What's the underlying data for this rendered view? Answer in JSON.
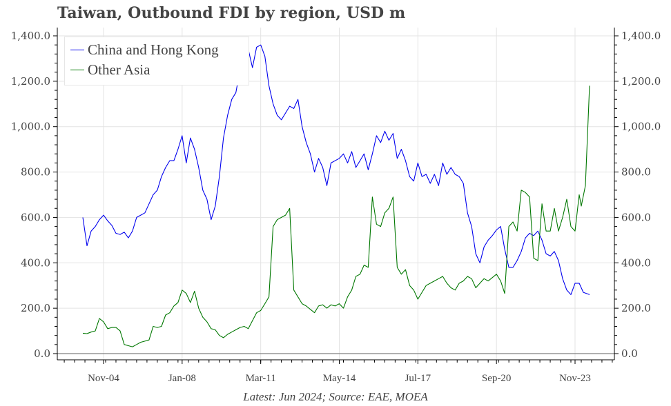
{
  "title": "Taiwan, Outbound FDI by region, USD m",
  "source_note": "Latest: Jun 2024; Source: EAE, MOEA",
  "legend": [
    {
      "label": "China and Hong Kong",
      "color": "#0000ee"
    },
    {
      "label": "Other Asia",
      "color": "#007700"
    }
  ],
  "axes": {
    "y_ticks": [
      "0.0",
      "200.0",
      "400.0",
      "600.0",
      "800.0",
      "1,000.0",
      "1,200.0",
      "1,400.0"
    ],
    "x_ticks": [
      "Nov-04",
      "Jan-08",
      "Mar-11",
      "May-14",
      "Jul-17",
      "Sep-20",
      "Nov-23"
    ]
  },
  "chart_data": {
    "type": "line",
    "title": "Taiwan, Outbound FDI by region, USD m",
    "xlabel": "",
    "ylabel": "USD m",
    "ylim": [
      0,
      1400
    ],
    "y_axes": "left and right (mirrored)",
    "grid": true,
    "legend_position": "upper left",
    "x_start": "Jan-04",
    "x_end": "Jun-24",
    "frequency": "monthly (values sampled ~every 2 months)",
    "x_ticks": [
      "Nov-04",
      "Jan-08",
      "Mar-11",
      "May-14",
      "Jul-17",
      "Sep-20",
      "Nov-23"
    ],
    "annotation": "Latest: Jun 2024; Source: EAE, MOEA",
    "series": [
      {
        "name": "China and Hong Kong",
        "color": "#0000ee",
        "points": [
          [
            "Jan-04",
            600
          ],
          [
            "Mar-04",
            475
          ],
          [
            "May-04",
            540
          ],
          [
            "Jul-04",
            560
          ],
          [
            "Sep-04",
            590
          ],
          [
            "Nov-04",
            610
          ],
          [
            "Jan-05",
            585
          ],
          [
            "Mar-05",
            565
          ],
          [
            "May-05",
            530
          ],
          [
            "Jul-05",
            525
          ],
          [
            "Sep-05",
            535
          ],
          [
            "Nov-05",
            510
          ],
          [
            "Jan-06",
            540
          ],
          [
            "Mar-06",
            600
          ],
          [
            "May-06",
            610
          ],
          [
            "Jul-06",
            620
          ],
          [
            "Sep-06",
            660
          ],
          [
            "Nov-06",
            700
          ],
          [
            "Jan-07",
            720
          ],
          [
            "Mar-07",
            780
          ],
          [
            "May-07",
            820
          ],
          [
            "Jul-07",
            850
          ],
          [
            "Sep-07",
            850
          ],
          [
            "Nov-07",
            900
          ],
          [
            "Jan-08",
            960
          ],
          [
            "Mar-08",
            840
          ],
          [
            "May-08",
            950
          ],
          [
            "Jul-08",
            900
          ],
          [
            "Sep-08",
            820
          ],
          [
            "Nov-08",
            720
          ],
          [
            "Jan-09",
            680
          ],
          [
            "Mar-09",
            590
          ],
          [
            "May-09",
            650
          ],
          [
            "Jul-09",
            780
          ],
          [
            "Sep-09",
            950
          ],
          [
            "Nov-09",
            1050
          ],
          [
            "Jan-10",
            1120
          ],
          [
            "Mar-10",
            1150
          ],
          [
            "May-10",
            1250
          ],
          [
            "Jul-10",
            1280
          ],
          [
            "Sep-10",
            1340
          ],
          [
            "Nov-10",
            1260
          ],
          [
            "Jan-11",
            1350
          ],
          [
            "Mar-11",
            1360
          ],
          [
            "May-11",
            1310
          ],
          [
            "Jul-11",
            1180
          ],
          [
            "Sep-11",
            1100
          ],
          [
            "Nov-11",
            1050
          ],
          [
            "Jan-12",
            1030
          ],
          [
            "Mar-12",
            1060
          ],
          [
            "May-12",
            1090
          ],
          [
            "Jul-12",
            1080
          ],
          [
            "Sep-12",
            1120
          ],
          [
            "Nov-12",
            1000
          ],
          [
            "Jan-13",
            930
          ],
          [
            "Mar-13",
            880
          ],
          [
            "May-13",
            800
          ],
          [
            "Jul-13",
            860
          ],
          [
            "Sep-13",
            820
          ],
          [
            "Nov-13",
            740
          ],
          [
            "Jan-14",
            840
          ],
          [
            "May-14",
            860
          ],
          [
            "Jul-14",
            880
          ],
          [
            "Sep-14",
            840
          ],
          [
            "Nov-14",
            890
          ],
          [
            "Jan-15",
            820
          ],
          [
            "Mar-15",
            850
          ],
          [
            "May-15",
            880
          ],
          [
            "Jul-15",
            810
          ],
          [
            "Sep-15",
            880
          ],
          [
            "Nov-15",
            960
          ],
          [
            "Jan-16",
            930
          ],
          [
            "Mar-16",
            980
          ],
          [
            "May-16",
            940
          ],
          [
            "Jul-16",
            970
          ],
          [
            "Sep-16",
            860
          ],
          [
            "Nov-16",
            900
          ],
          [
            "Jan-17",
            850
          ],
          [
            "Mar-17",
            780
          ],
          [
            "May-17",
            760
          ],
          [
            "Jul-17",
            840
          ],
          [
            "Sep-17",
            780
          ],
          [
            "Nov-17",
            790
          ],
          [
            "Jan-18",
            750
          ],
          [
            "Mar-18",
            790
          ],
          [
            "May-18",
            740
          ],
          [
            "Jul-18",
            840
          ],
          [
            "Sep-18",
            790
          ],
          [
            "Nov-18",
            820
          ],
          [
            "Jan-19",
            790
          ],
          [
            "Mar-19",
            780
          ],
          [
            "May-19",
            750
          ],
          [
            "Jul-19",
            620
          ],
          [
            "Sep-19",
            560
          ],
          [
            "Nov-19",
            440
          ],
          [
            "Jan-20",
            400
          ],
          [
            "Mar-20",
            470
          ],
          [
            "May-20",
            500
          ],
          [
            "Jul-20",
            520
          ],
          [
            "Sep-20",
            545
          ],
          [
            "Nov-20",
            560
          ],
          [
            "Jan-21",
            460
          ],
          [
            "Mar-21",
            380
          ],
          [
            "May-21",
            380
          ],
          [
            "Jul-21",
            410
          ],
          [
            "Sep-21",
            450
          ],
          [
            "Nov-21",
            510
          ],
          [
            "Jan-22",
            530
          ],
          [
            "Mar-22",
            520
          ],
          [
            "May-22",
            540
          ],
          [
            "Jul-22",
            500
          ],
          [
            "Sep-22",
            440
          ],
          [
            "Nov-22",
            430
          ],
          [
            "Jan-23",
            450
          ],
          [
            "Mar-23",
            410
          ],
          [
            "May-23",
            330
          ],
          [
            "Jul-23",
            280
          ],
          [
            "Sep-23",
            260
          ],
          [
            "Nov-23",
            310
          ],
          [
            "Jan-24",
            310
          ],
          [
            "Mar-24",
            270
          ],
          [
            "Jun-24",
            260
          ]
        ]
      },
      {
        "name": "Other Asia",
        "color": "#007700",
        "points": [
          [
            "Jan-04",
            90
          ],
          [
            "Mar-04",
            88
          ],
          [
            "May-04",
            95
          ],
          [
            "Jul-04",
            100
          ],
          [
            "Sep-04",
            155
          ],
          [
            "Nov-04",
            140
          ],
          [
            "Jan-05",
            110
          ],
          [
            "Mar-05",
            115
          ],
          [
            "May-05",
            115
          ],
          [
            "Jul-05",
            100
          ],
          [
            "Sep-05",
            40
          ],
          [
            "Nov-05",
            35
          ],
          [
            "Jan-06",
            30
          ],
          [
            "Mar-06",
            40
          ],
          [
            "May-06",
            50
          ],
          [
            "Jul-06",
            55
          ],
          [
            "Sep-06",
            60
          ],
          [
            "Nov-06",
            120
          ],
          [
            "Jan-07",
            115
          ],
          [
            "Mar-07",
            120
          ],
          [
            "May-07",
            170
          ],
          [
            "Jul-07",
            180
          ],
          [
            "Sep-07",
            210
          ],
          [
            "Nov-07",
            225
          ],
          [
            "Jan-08",
            280
          ],
          [
            "Mar-08",
            265
          ],
          [
            "May-08",
            225
          ],
          [
            "Jul-08",
            275
          ],
          [
            "Sep-08",
            200
          ],
          [
            "Nov-08",
            160
          ],
          [
            "Jan-09",
            140
          ],
          [
            "Mar-09",
            110
          ],
          [
            "May-09",
            105
          ],
          [
            "Jul-09",
            80
          ],
          [
            "Sep-09",
            70
          ],
          [
            "Nov-09",
            85
          ],
          [
            "Jan-10",
            95
          ],
          [
            "Mar-10",
            105
          ],
          [
            "May-10",
            115
          ],
          [
            "Jul-10",
            120
          ],
          [
            "Sep-10",
            110
          ],
          [
            "Nov-10",
            145
          ],
          [
            "Jan-11",
            180
          ],
          [
            "Mar-11",
            190
          ],
          [
            "May-11",
            220
          ],
          [
            "Jul-11",
            250
          ],
          [
            "Sep-11",
            560
          ],
          [
            "Nov-11",
            590
          ],
          [
            "Jan-12",
            600
          ],
          [
            "Mar-12",
            610
          ],
          [
            "May-12",
            640
          ],
          [
            "Jul-12",
            280
          ],
          [
            "Sep-12",
            250
          ],
          [
            "Nov-12",
            220
          ],
          [
            "Jan-13",
            210
          ],
          [
            "Mar-13",
            195
          ],
          [
            "May-13",
            180
          ],
          [
            "Jul-13",
            210
          ],
          [
            "Sep-13",
            215
          ],
          [
            "Nov-13",
            200
          ],
          [
            "Jan-14",
            215
          ],
          [
            "Mar-14",
            210
          ],
          [
            "May-14",
            220
          ],
          [
            "Jul-14",
            200
          ],
          [
            "Sep-14",
            250
          ],
          [
            "Nov-14",
            280
          ],
          [
            "Jan-15",
            340
          ],
          [
            "Mar-15",
            350
          ],
          [
            "May-15",
            390
          ],
          [
            "Jul-15",
            380
          ],
          [
            "Sep-15",
            690
          ],
          [
            "Nov-15",
            570
          ],
          [
            "Jan-16",
            560
          ],
          [
            "Mar-16",
            620
          ],
          [
            "May-16",
            640
          ],
          [
            "Jul-16",
            690
          ],
          [
            "Sep-16",
            380
          ],
          [
            "Nov-16",
            350
          ],
          [
            "Jan-17",
            370
          ],
          [
            "Mar-17",
            300
          ],
          [
            "May-17",
            280
          ],
          [
            "Jul-17",
            240
          ],
          [
            "Sep-17",
            270
          ],
          [
            "Nov-17",
            300
          ],
          [
            "Jan-18",
            310
          ],
          [
            "Mar-18",
            320
          ],
          [
            "May-18",
            330
          ],
          [
            "Jul-18",
            340
          ],
          [
            "Sep-18",
            310
          ],
          [
            "Nov-18",
            290
          ],
          [
            "Jan-19",
            280
          ],
          [
            "Mar-19",
            310
          ],
          [
            "May-19",
            320
          ],
          [
            "Jul-19",
            340
          ],
          [
            "Sep-19",
            330
          ],
          [
            "Nov-19",
            290
          ],
          [
            "Jan-20",
            310
          ],
          [
            "Mar-20",
            330
          ],
          [
            "May-20",
            320
          ],
          [
            "Jul-20",
            335
          ],
          [
            "Sep-20",
            350
          ],
          [
            "Nov-20",
            320
          ],
          [
            "Jan-21",
            265
          ],
          [
            "Mar-21",
            560
          ],
          [
            "May-21",
            580
          ],
          [
            "Jul-21",
            540
          ],
          [
            "Sep-21",
            720
          ],
          [
            "Nov-21",
            710
          ],
          [
            "Jan-22",
            690
          ],
          [
            "Mar-22",
            420
          ],
          [
            "May-22",
            410
          ],
          [
            "Jul-22",
            660
          ],
          [
            "Sep-22",
            540
          ],
          [
            "Nov-22",
            540
          ],
          [
            "Jan-23",
            640
          ],
          [
            "Mar-23",
            540
          ],
          [
            "May-23",
            600
          ],
          [
            "Jul-23",
            680
          ],
          [
            "Sep-23",
            560
          ],
          [
            "Nov-23",
            540
          ],
          [
            "Jan-24",
            700
          ],
          [
            "Feb-24",
            650
          ],
          [
            "Apr-24",
            740
          ],
          [
            "Jun-24",
            1180
          ]
        ]
      }
    ]
  }
}
